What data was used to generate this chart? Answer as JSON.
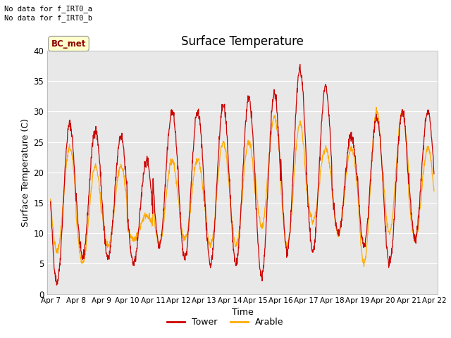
{
  "title": "Surface Temperature",
  "xlabel": "Time",
  "ylabel": "Surface Temperature (C)",
  "ylim": [
    0,
    40
  ],
  "bg_color": "#e8e8e8",
  "fig_bg": "#ffffff",
  "tower_color": "#cc0000",
  "arable_color": "#ffaa00",
  "text_top_left": "No data for f_IRT0_a\nNo data for f_IRT0_b",
  "legend_label_tower": "Tower",
  "legend_label_arable": "Arable",
  "legend_box_label": "BC_met",
  "x_tick_labels": [
    "Apr 7",
    "Apr 8",
    "Apr 9",
    "Apr 10",
    "Apr 11",
    "Apr 12",
    "Apr 13",
    "Apr 14",
    "Apr 15",
    "Apr 16",
    "Apr 17",
    "Apr 18",
    "Apr 19",
    "Apr 20",
    "Apr 21",
    "Apr 22"
  ],
  "x_tick_positions": [
    0,
    24,
    48,
    72,
    96,
    120,
    144,
    168,
    192,
    216,
    240,
    264,
    288,
    312,
    336,
    360
  ],
  "yticks": [
    0,
    5,
    10,
    15,
    20,
    25,
    30,
    35,
    40
  ],
  "tower_day_params": [
    [
      2,
      28
    ],
    [
      6,
      27
    ],
    [
      6,
      26
    ],
    [
      5,
      22
    ],
    [
      8,
      30
    ],
    [
      6,
      30
    ],
    [
      5,
      31
    ],
    [
      5,
      32
    ],
    [
      3,
      33
    ],
    [
      7,
      37
    ],
    [
      7,
      34
    ],
    [
      10,
      26
    ],
    [
      8,
      29
    ],
    [
      5,
      30
    ],
    [
      9,
      30
    ]
  ],
  "arable_day_params": [
    [
      7,
      24
    ],
    [
      5,
      21
    ],
    [
      8,
      21
    ],
    [
      9,
      13
    ],
    [
      8,
      22
    ],
    [
      9,
      22
    ],
    [
      8,
      25
    ],
    [
      8,
      25
    ],
    [
      11,
      29
    ],
    [
      8,
      28
    ],
    [
      12,
      24
    ],
    [
      10,
      24
    ],
    [
      5,
      30
    ],
    [
      10,
      30
    ],
    [
      9,
      24
    ]
  ]
}
